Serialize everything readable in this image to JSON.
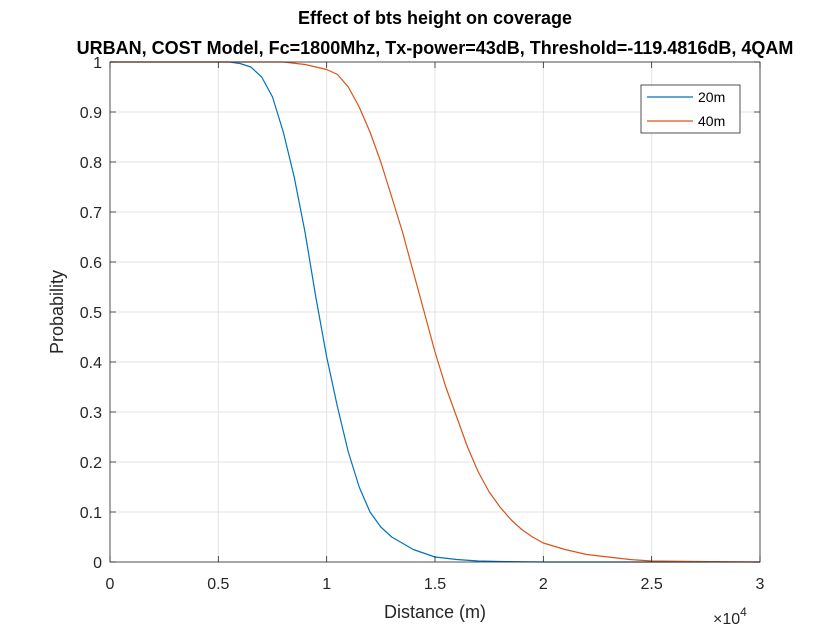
{
  "chart_data": {
    "type": "line",
    "title": "Effect of bts height on coverage",
    "subtitle": "URBAN, COST Model, Fc=1800Mhz, Tx-power=43dB, Threshold=-119.4816dB, 4QAM",
    "xlabel": "Distance (m)",
    "ylabel": "Probability",
    "x_exponent_label": "×10",
    "x_exponent_power": "4",
    "xlim": [
      0,
      30000
    ],
    "ylim": [
      0,
      1
    ],
    "x_tick_values": [
      0,
      5000,
      10000,
      15000,
      20000,
      25000,
      30000
    ],
    "x_tick_labels": [
      "0",
      "0.5",
      "1",
      "1.5",
      "2",
      "2.5",
      "3"
    ],
    "y_tick_values": [
      0,
      0.1,
      0.2,
      0.3,
      0.4,
      0.5,
      0.6,
      0.7,
      0.8,
      0.9,
      1
    ],
    "y_tick_labels": [
      "0",
      "0.1",
      "0.2",
      "0.3",
      "0.4",
      "0.5",
      "0.6",
      "0.7",
      "0.8",
      "0.9",
      "1"
    ],
    "grid": true,
    "legend_position": "top-right",
    "series": [
      {
        "name": "20m",
        "color": "#0072BD",
        "x": [
          0,
          4000,
          5000,
          5500,
          6000,
          6500,
          7000,
          7500,
          8000,
          8500,
          9000,
          9500,
          10000,
          10500,
          11000,
          11500,
          12000,
          12500,
          13000,
          14000,
          15000,
          16000,
          17000,
          18000,
          20000,
          25000,
          30000
        ],
        "y": [
          1,
          1,
          1,
          1,
          0.997,
          0.99,
          0.97,
          0.93,
          0.86,
          0.77,
          0.66,
          0.53,
          0.41,
          0.31,
          0.22,
          0.15,
          0.1,
          0.07,
          0.05,
          0.025,
          0.01,
          0.005,
          0.002,
          0.001,
          0,
          0,
          0
        ]
      },
      {
        "name": "40m",
        "color": "#D95319",
        "x": [
          0,
          6000,
          8000,
          9000,
          10000,
          10500,
          11000,
          11500,
          12000,
          12500,
          13000,
          13500,
          14000,
          14500,
          15000,
          15500,
          16000,
          16500,
          17000,
          17500,
          18000,
          18500,
          19000,
          19500,
          20000,
          21000,
          22000,
          23000,
          24000,
          25000,
          27000,
          30000
        ],
        "y": [
          1,
          1,
          1,
          0.995,
          0.985,
          0.975,
          0.95,
          0.91,
          0.86,
          0.8,
          0.73,
          0.66,
          0.58,
          0.5,
          0.42,
          0.35,
          0.29,
          0.23,
          0.18,
          0.14,
          0.11,
          0.085,
          0.065,
          0.05,
          0.038,
          0.025,
          0.015,
          0.01,
          0.005,
          0.002,
          0.001,
          0
        ]
      }
    ]
  }
}
